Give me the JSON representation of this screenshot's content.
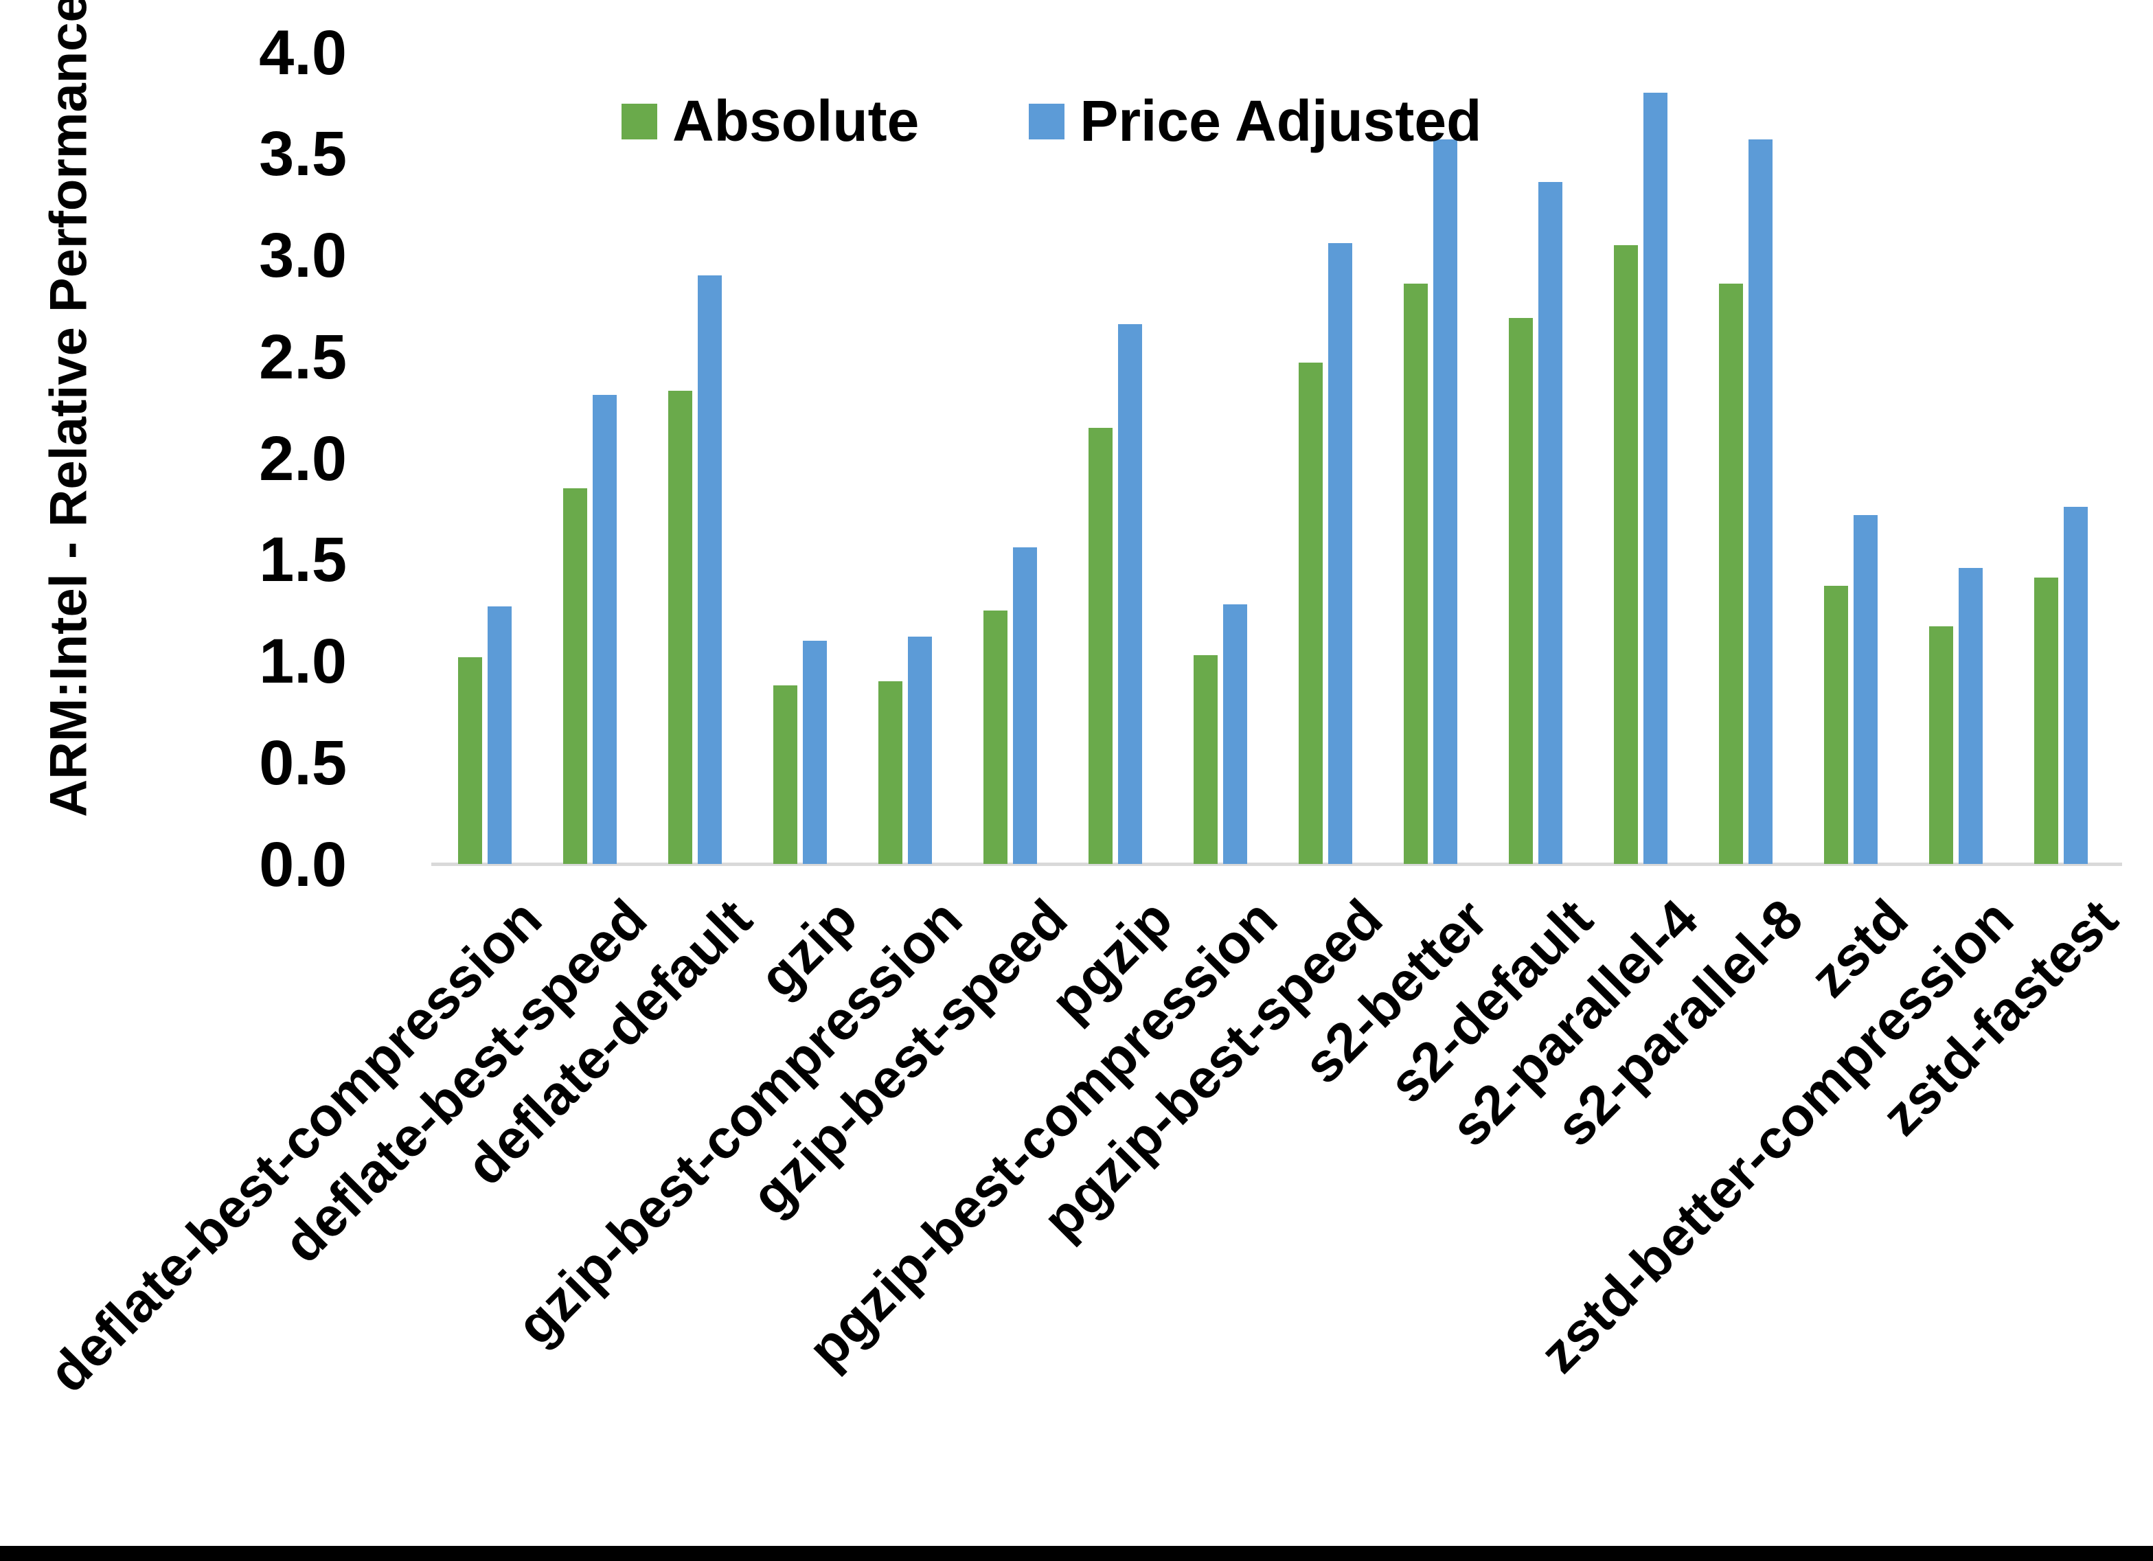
{
  "figure": {
    "background_color": "#FFFFFF",
    "bottom_bar_color": "#000000",
    "axis_line_color": "#D9D9D9",
    "text_color": "#000000"
  },
  "chart_data": {
    "type": "bar",
    "title": "",
    "xlabel": "",
    "ylabel": "ARM:Intel - Relative Performance",
    "ylim": [
      0.0,
      4.0
    ],
    "y_ticks": [
      "4.0",
      "3.5",
      "3.0",
      "2.5",
      "2.0",
      "1.5",
      "1.0",
      "0.5",
      "0.0"
    ],
    "y_tick_values": [
      4.0,
      3.5,
      3.0,
      2.5,
      2.0,
      1.5,
      1.0,
      0.5,
      0.0
    ],
    "grid": false,
    "legend_position": "top-center",
    "categories": [
      "deflate-best-compression",
      "deflate-best-speed",
      "deflate-default",
      "gzip",
      "gzip-best-compression",
      "gzip-best-speed",
      "pgzip",
      "pgzip-best-compression",
      "pgzip-best-speed",
      "s2-better",
      "s2-default",
      "s2-parallel-4",
      "s2-parallel-8",
      "zstd",
      "zstd-better-compression",
      "zstd-fastest"
    ],
    "series": [
      {
        "name": "Absolute",
        "color": "#6AAA4B",
        "values": [
          1.02,
          1.85,
          2.33,
          0.88,
          0.9,
          1.25,
          2.15,
          1.03,
          2.47,
          2.86,
          2.69,
          3.05,
          2.86,
          1.37,
          1.17,
          1.41
        ]
      },
      {
        "name": "Price Adjusted",
        "color": "#5C9BD7",
        "values": [
          1.27,
          2.31,
          2.9,
          1.1,
          1.12,
          1.56,
          2.66,
          1.28,
          3.06,
          3.57,
          3.36,
          3.8,
          3.57,
          1.72,
          1.46,
          1.76
        ]
      }
    ]
  }
}
